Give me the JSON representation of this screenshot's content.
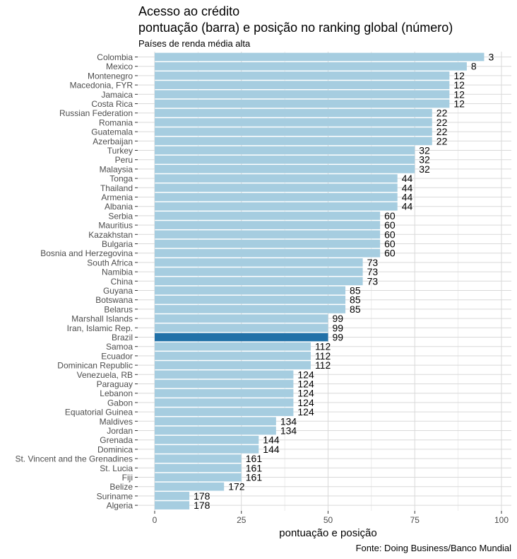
{
  "chart_data": {
    "type": "bar",
    "orientation": "horizontal",
    "title": "Acesso ao crédito",
    "title_line2": "pontuação (barra) e posição no ranking global (número)",
    "subtitle": "Países de renda média alta",
    "xlabel": "pontuação e posição",
    "caption": "Fonte: Doing Business/Banco Mundial",
    "xlim": [
      0,
      100
    ],
    "xticks": [
      0,
      25,
      50,
      75,
      100
    ],
    "grid": true,
    "colors": {
      "default": "#a6cde0",
      "highlight": "#2171a8"
    },
    "highlight": "Brazil",
    "categories": [
      "Colombia",
      "Mexico",
      "Montenegro",
      "Macedonia, FYR",
      "Jamaica",
      "Costa Rica",
      "Russian Federation",
      "Romania",
      "Guatemala",
      "Azerbaijan",
      "Turkey",
      "Peru",
      "Malaysia",
      "Tonga",
      "Thailand",
      "Armenia",
      "Albania",
      "Serbia",
      "Mauritius",
      "Kazakhstan",
      "Bulgaria",
      "Bosnia and Herzegovina",
      "South Africa",
      "Namibia",
      "China",
      "Guyana",
      "Botswana",
      "Belarus",
      "Marshall Islands",
      "Iran, Islamic Rep.",
      "Brazil",
      "Samoa",
      "Ecuador",
      "Dominican Republic",
      "Venezuela, RB",
      "Paraguay",
      "Lebanon",
      "Gabon",
      "Equatorial Guinea",
      "Maldives",
      "Jordan",
      "Grenada",
      "Dominica",
      "St. Vincent and the Grenadines",
      "St. Lucia",
      "Fiji",
      "Belize",
      "Suriname",
      "Algeria"
    ],
    "values": [
      95,
      90,
      85,
      85,
      85,
      85,
      80,
      80,
      80,
      80,
      75,
      75,
      75,
      70,
      70,
      70,
      70,
      65,
      65,
      65,
      65,
      65,
      60,
      60,
      60,
      55,
      55,
      55,
      50,
      50,
      50,
      45,
      45,
      45,
      40,
      40,
      40,
      40,
      40,
      35,
      35,
      30,
      30,
      25,
      25,
      25,
      20,
      10,
      10
    ],
    "labels": [
      "3",
      "8",
      "12",
      "12",
      "12",
      "12",
      "22",
      "22",
      "22",
      "22",
      "32",
      "32",
      "32",
      "44",
      "44",
      "44",
      "44",
      "60",
      "60",
      "60",
      "60",
      "60",
      "73",
      "73",
      "73",
      "85",
      "85",
      "85",
      "99",
      "99",
      "99",
      "112",
      "112",
      "112",
      "124",
      "124",
      "124",
      "124",
      "124",
      "134",
      "134",
      "144",
      "144",
      "161",
      "161",
      "161",
      "172",
      "178",
      "178"
    ]
  }
}
